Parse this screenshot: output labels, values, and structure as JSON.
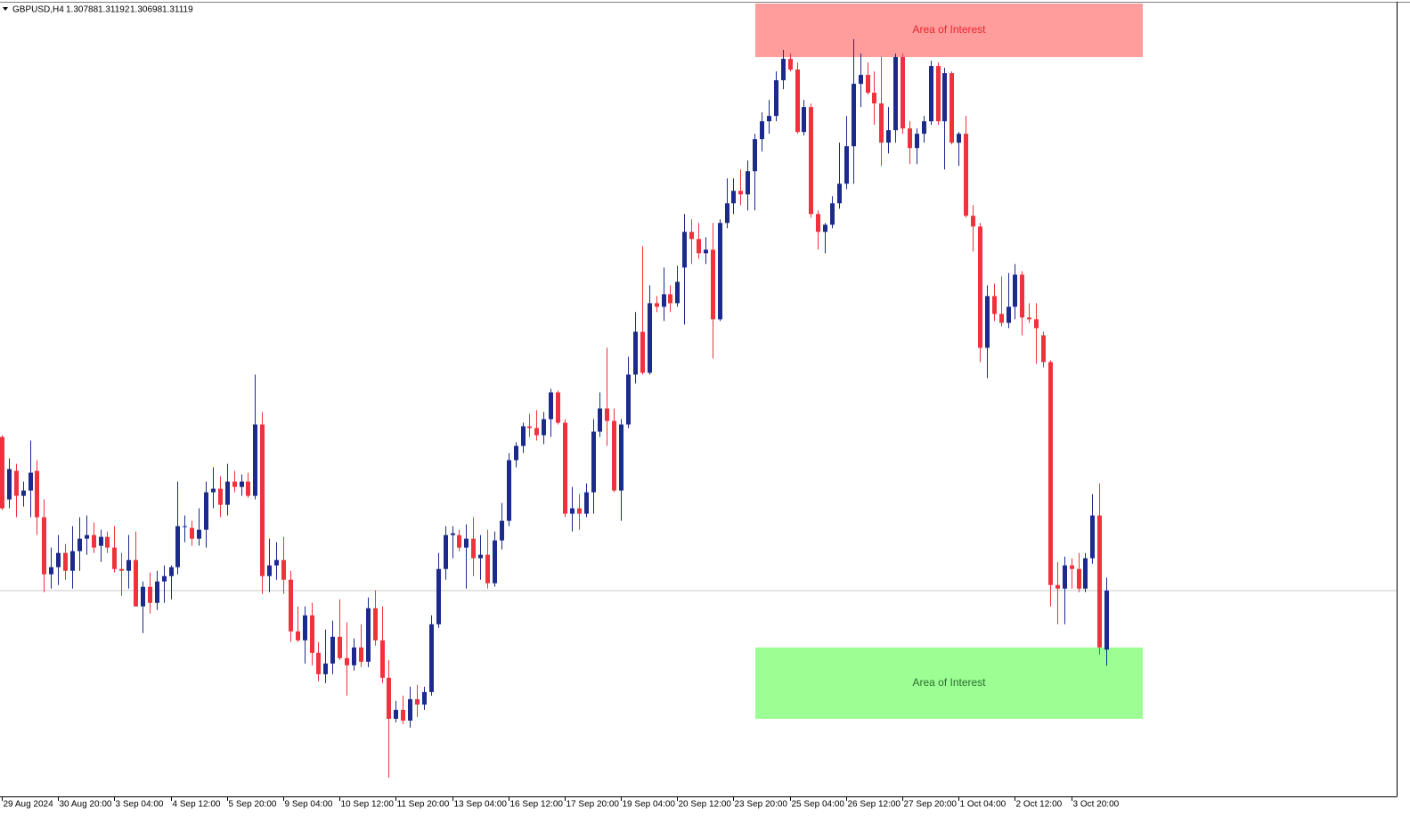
{
  "chart_data": {
    "type": "candlestick",
    "symbol": "GBPUSD,H4",
    "up_color": "#1c2a8c",
    "down_color": "#f0323c",
    "price_line_color": "#c8c8c8",
    "xlim": [
      -0.25,
      198.25
    ],
    "ylim": [
      1.2997,
      1.3441
    ],
    "xticks": [
      {
        "value": 0,
        "label": "29 Aug 2024"
      },
      {
        "value": 8,
        "label": "30 Aug 20:00"
      },
      {
        "value": 16,
        "label": "3 Sep 04:00"
      },
      {
        "value": 24,
        "label": "4 Sep 12:00"
      },
      {
        "value": 32,
        "label": "5 Sep 20:00"
      },
      {
        "value": 40,
        "label": "9 Sep 04:00"
      },
      {
        "value": 48,
        "label": "10 Sep 12:00"
      },
      {
        "value": 56,
        "label": "11 Sep 20:00"
      },
      {
        "value": 64,
        "label": "13 Sep 04:00"
      },
      {
        "value": 72,
        "label": "16 Sep 12:00"
      },
      {
        "value": 80,
        "label": "17 Sep 20:00"
      },
      {
        "value": 88,
        "label": "19 Sep 04:00"
      },
      {
        "value": 96,
        "label": "20 Sep 12:00"
      },
      {
        "value": 104,
        "label": "23 Sep 20:00"
      },
      {
        "value": 112,
        "label": "25 Sep 04:00"
      },
      {
        "value": 120,
        "label": "26 Sep 12:00"
      },
      {
        "value": 128,
        "label": "27 Sep 20:00"
      },
      {
        "value": 136,
        "label": "1 Oct 04:00"
      },
      {
        "value": 144,
        "label": "2 Oct 12:00"
      },
      {
        "value": 152,
        "label": "3 Oct 20:00"
      }
    ],
    "open": [
      1.3198,
      1.3163,
      1.3179,
      1.3165,
      1.3168,
      1.3179,
      1.3153,
      1.3121,
      1.3125,
      1.3133,
      1.3123,
      1.3134,
      1.3141,
      1.3143,
      1.3137,
      1.3142,
      1.3136,
      1.3124,
      1.3123,
      1.3129,
      1.3103,
      1.3114,
      1.3105,
      1.3117,
      1.312,
      1.3125,
      1.3148,
      1.3147,
      1.3141,
      1.3146,
      1.3167,
      1.3169,
      1.316,
      1.3173,
      1.317,
      1.3173,
      1.3165,
      1.3205,
      1.312,
      1.3126,
      1.3129,
      1.3118,
      1.3089,
      1.3084,
      1.3098,
      1.3077,
      1.3065,
      1.3071,
      1.3086,
      1.3074,
      1.307,
      1.308,
      1.3072,
      1.3102,
      1.3084,
      1.3063,
      1.304,
      1.3045,
      1.3039,
      1.3051,
      1.3048,
      1.3055,
      1.3093,
      1.3124,
      1.3143,
      1.3143,
      1.3136,
      1.3141,
      1.313,
      1.3132,
      1.3116,
      1.314,
      1.3151,
      1.3185,
      1.3193,
      1.3204,
      1.3203,
      1.3199,
      1.3208,
      1.3223,
      1.3206,
      1.3155,
      1.3158,
      1.3155,
      1.3167,
      1.3201,
      1.3214,
      1.3207,
      1.3168,
      1.3205,
      1.3233,
      1.3257,
      1.3234,
      1.3273,
      1.3271,
      1.3278,
      1.3273,
      1.3293,
      1.3313,
      1.3309,
      1.3301,
      1.3303,
      1.3264,
      1.3318,
      1.3329,
      1.3336,
      1.3334,
      1.3347,
      1.3365,
      1.3375,
      1.3378,
      1.3398,
      1.341,
      1.3404,
      1.3369,
      1.3383,
      1.3323,
      1.3313,
      1.3317,
      1.3329,
      1.334,
      1.3361,
      1.3396,
      1.3401,
      1.3391,
      1.3385,
      1.3363,
      1.337,
      1.3411,
      1.3371,
      1.336,
      1.3368,
      1.3375,
      1.3406,
      1.3375,
      1.3402,
      1.3363,
      1.3368,
      1.3322,
      1.3316,
      1.3248,
      1.3277,
      1.3267,
      1.3262,
      1.3271,
      1.3289,
      1.3265,
      1.3264,
      1.3255,
      1.324,
      1.3115,
      1.3113,
      1.3126,
      1.3124,
      1.3113,
      1.313,
      1.3154,
      1.30788
    ],
    "high": [
      1.3199,
      1.3186,
      1.3183,
      1.3173,
      1.3196,
      1.3185,
      1.3163,
      1.3136,
      1.3143,
      1.3138,
      1.3148,
      1.3153,
      1.3154,
      1.315,
      1.3146,
      1.3145,
      1.3148,
      1.3133,
      1.3143,
      1.3145,
      1.3117,
      1.3122,
      1.3123,
      1.3126,
      1.3126,
      1.3173,
      1.3154,
      1.3151,
      1.3158,
      1.3173,
      1.3181,
      1.3176,
      1.3183,
      1.3179,
      1.3177,
      1.3178,
      1.3233,
      1.3212,
      1.3141,
      1.3139,
      1.3142,
      1.3123,
      1.3103,
      1.3103,
      1.3105,
      1.3083,
      1.309,
      1.3095,
      1.3107,
      1.3094,
      1.3085,
      1.3093,
      1.3108,
      1.3112,
      1.3103,
      1.3073,
      1.305,
      1.3053,
      1.3058,
      1.3059,
      1.3058,
      1.3098,
      1.3133,
      1.3148,
      1.3148,
      1.3146,
      1.3149,
      1.3153,
      1.3143,
      1.3146,
      1.3145,
      1.3161,
      1.3189,
      1.3195,
      1.3206,
      1.3211,
      1.3213,
      1.3212,
      1.3225,
      1.3224,
      1.3208,
      1.317,
      1.3166,
      1.3172,
      1.3208,
      1.3223,
      1.3248,
      1.3214,
      1.3208,
      1.3243,
      1.3268,
      1.3305,
      1.3283,
      1.3277,
      1.3293,
      1.3283,
      1.3294,
      1.3323,
      1.332,
      1.3318,
      1.331,
      1.3318,
      1.332,
      1.3343,
      1.3343,
      1.3348,
      1.3353,
      1.3368,
      1.338,
      1.3387,
      1.3403,
      1.3415,
      1.3413,
      1.3408,
      1.3387,
      1.3385,
      1.3325,
      1.3318,
      1.3333,
      1.3363,
      1.3378,
      1.3421,
      1.3413,
      1.3408,
      1.3403,
      1.3411,
      1.3383,
      1.3413,
      1.3413,
      1.3375,
      1.3371,
      1.3378,
      1.3409,
      1.3408,
      1.3405,
      1.3403,
      1.3369,
      1.3378,
      1.3328,
      1.3318,
      1.3283,
      1.3284,
      1.3288,
      1.329,
      1.3295,
      1.3291,
      1.3273,
      1.3273,
      1.3257,
      1.3241,
      1.3128,
      1.3131,
      1.313,
      1.3133,
      1.3133,
      1.3166,
      1.3172,
      1.31192
    ],
    "low": [
      1.3157,
      1.3158,
      1.3153,
      1.3159,
      1.3153,
      1.3143,
      1.3111,
      1.3113,
      1.3115,
      1.3118,
      1.3113,
      1.3123,
      1.3132,
      1.3133,
      1.3128,
      1.3133,
      1.3122,
      1.3109,
      1.3113,
      1.3103,
      1.3088,
      1.3099,
      1.3101,
      1.3105,
      1.3107,
      1.3121,
      1.3139,
      1.3137,
      1.3137,
      1.3136,
      1.3158,
      1.3153,
      1.3154,
      1.3167,
      1.3165,
      1.3164,
      1.3163,
      1.311,
      1.3111,
      1.3118,
      1.311,
      1.3083,
      1.3083,
      1.3071,
      1.307,
      1.3061,
      1.306,
      1.3065,
      1.3073,
      1.3053,
      1.3067,
      1.3069,
      1.3069,
      1.3081,
      1.306,
      1.3007,
      1.3038,
      1.3037,
      1.3035,
      1.3041,
      1.3045,
      1.3053,
      1.3091,
      1.3118,
      1.313,
      1.3134,
      1.3113,
      1.312,
      1.3118,
      1.3113,
      1.3114,
      1.3135,
      1.3148,
      1.3181,
      1.3189,
      1.3198,
      1.3196,
      1.3194,
      1.3198,
      1.3205,
      1.3153,
      1.3145,
      1.3146,
      1.3153,
      1.3155,
      1.3198,
      1.3193,
      1.3167,
      1.3151,
      1.3203,
      1.3228,
      1.3233,
      1.3233,
      1.3268,
      1.3263,
      1.3268,
      1.3271,
      1.3261,
      1.3295,
      1.3298,
      1.3295,
      1.3242,
      1.3263,
      1.3315,
      1.3323,
      1.3328,
      1.3325,
      1.3325,
      1.3358,
      1.3368,
      1.3375,
      1.3393,
      1.3403,
      1.3368,
      1.3367,
      1.3321,
      1.3303,
      1.3301,
      1.3315,
      1.3326,
      1.3337,
      1.334,
      1.3383,
      1.339,
      1.3373,
      1.335,
      1.3357,
      1.3363,
      1.3368,
      1.3351,
      1.3351,
      1.3363,
      1.3373,
      1.3373,
      1.3348,
      1.3362,
      1.335,
      1.3321,
      1.3302,
      1.324,
      1.3231,
      1.3263,
      1.326,
      1.3259,
      1.3264,
      1.3255,
      1.3262,
      1.3239,
      1.3237,
      1.3103,
      1.3093,
      1.3093,
      1.3113,
      1.3111,
      1.3111,
      1.3127,
      1.3076,
      1.30698
    ],
    "close": [
      1.3158,
      1.318,
      1.3165,
      1.3168,
      1.3178,
      1.3153,
      1.3121,
      1.3125,
      1.3133,
      1.3123,
      1.3134,
      1.3141,
      1.3143,
      1.3136,
      1.3142,
      1.3136,
      1.3124,
      1.3123,
      1.3129,
      1.3103,
      1.3114,
      1.3105,
      1.3117,
      1.312,
      1.3125,
      1.3148,
      1.3148,
      1.3141,
      1.3146,
      1.3167,
      1.3169,
      1.316,
      1.3173,
      1.317,
      1.3173,
      1.3165,
      1.3205,
      1.312,
      1.3126,
      1.3129,
      1.3118,
      1.3089,
      1.3084,
      1.3098,
      1.3077,
      1.3065,
      1.3071,
      1.3086,
      1.3074,
      1.307,
      1.308,
      1.3072,
      1.3102,
      1.3084,
      1.3063,
      1.304,
      1.3045,
      1.3039,
      1.3051,
      1.3048,
      1.3055,
      1.3093,
      1.3124,
      1.3143,
      1.3144,
      1.3136,
      1.3141,
      1.313,
      1.3132,
      1.3116,
      1.314,
      1.3151,
      1.3185,
      1.3193,
      1.3204,
      1.3203,
      1.3199,
      1.3208,
      1.3223,
      1.3206,
      1.3155,
      1.3158,
      1.3155,
      1.3167,
      1.3201,
      1.3214,
      1.3207,
      1.3168,
      1.3205,
      1.3233,
      1.3257,
      1.3234,
      1.3273,
      1.3271,
      1.3278,
      1.3273,
      1.3285,
      1.3313,
      1.3309,
      1.3301,
      1.3303,
      1.3264,
      1.3318,
      1.3329,
      1.3336,
      1.3334,
      1.3347,
      1.3365,
      1.3375,
      1.3378,
      1.3398,
      1.341,
      1.3404,
      1.3369,
      1.3383,
      1.3323,
      1.3313,
      1.3317,
      1.3329,
      1.334,
      1.3361,
      1.3396,
      1.3401,
      1.3391,
      1.3385,
      1.3363,
      1.337,
      1.3411,
      1.3371,
      1.336,
      1.3368,
      1.3375,
      1.3406,
      1.3375,
      1.3402,
      1.3363,
      1.3368,
      1.3322,
      1.3316,
      1.3248,
      1.3277,
      1.3267,
      1.3262,
      1.3271,
      1.3289,
      1.3265,
      1.3264,
      1.3259,
      1.324,
      1.3115,
      1.3113,
      1.3126,
      1.3124,
      1.3113,
      1.313,
      1.3154,
      1.308,
      1.31119
    ],
    "zones": [
      {
        "label": "Area of Interest",
        "color": "#ff9c9c",
        "text_color": "#e8262e",
        "range": [
          1.3411,
          1.3441
        ]
      },
      {
        "label": "Area of Interest",
        "color": "#9cff94",
        "text_color": "#2e6b2e",
        "range": [
          1.304,
          1.308
        ]
      }
    ]
  }
}
